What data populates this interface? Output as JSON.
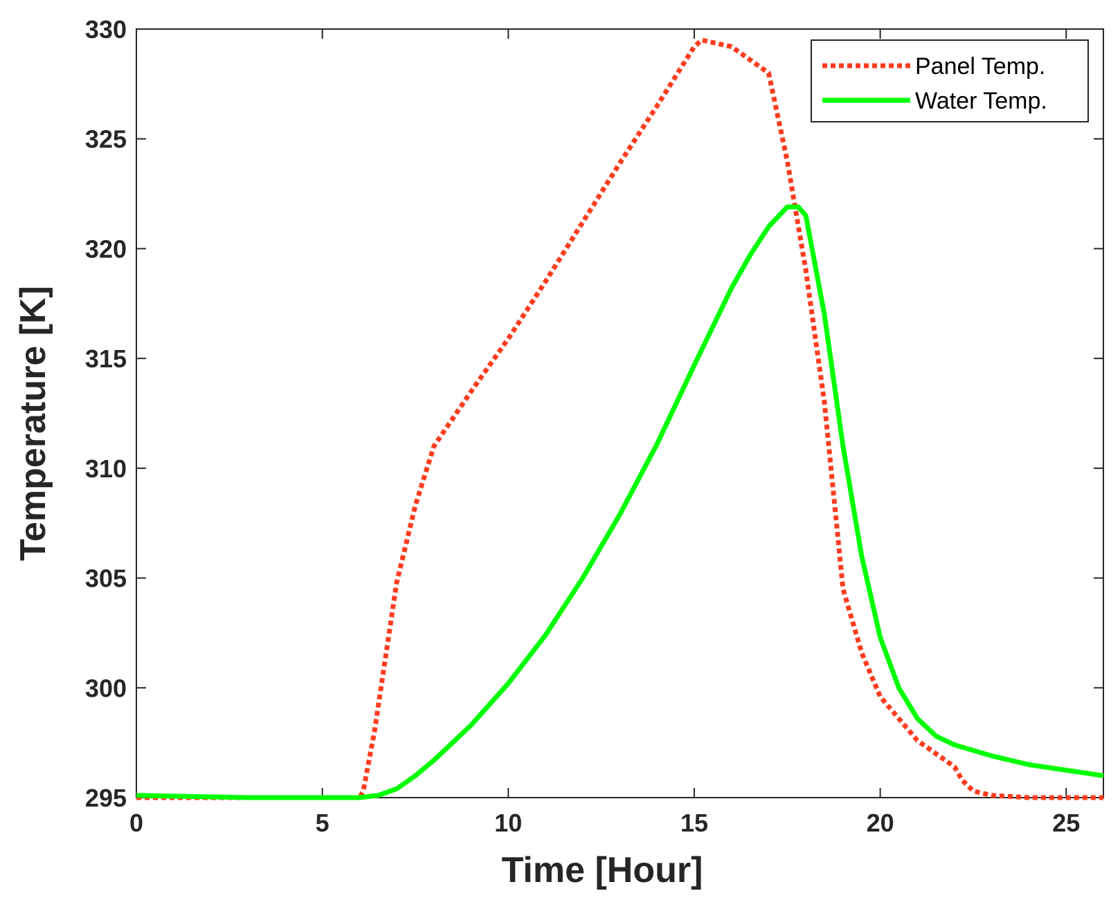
{
  "chart_data": {
    "type": "line",
    "xlabel": "Time [Hour]",
    "ylabel": "Temperature [K]",
    "xlim": [
      0,
      26
    ],
    "ylim": [
      295,
      330
    ],
    "xticks": [
      0,
      5,
      10,
      15,
      20,
      25
    ],
    "yticks": [
      295,
      300,
      305,
      310,
      315,
      320,
      325,
      330
    ],
    "grid": false,
    "legend_position": "top-right",
    "series": [
      {
        "name": "Panel Temp.",
        "color": "#ff3d1f",
        "style": "dotted",
        "x": [
          0,
          3,
          6.0,
          6.1,
          6.4,
          7.0,
          7.5,
          8.0,
          9.0,
          10.0,
          11.0,
          12.0,
          13.0,
          14.0,
          15.0,
          15.2,
          16.0,
          17.0,
          17.5,
          18.0,
          18.5,
          19.0,
          19.5,
          20.0,
          21.0,
          22.0,
          22.2,
          22.5,
          23.0,
          24.0,
          26.0
        ],
        "y": [
          295.0,
          295.0,
          295.0,
          295.3,
          298.0,
          304.8,
          308.3,
          311.0,
          313.5,
          315.9,
          318.5,
          321.2,
          323.9,
          326.5,
          329.2,
          329.5,
          329.2,
          328.0,
          324.0,
          319.0,
          313.0,
          304.5,
          301.6,
          299.6,
          297.6,
          296.4,
          295.8,
          295.3,
          295.1,
          295.0,
          295.0
        ]
      },
      {
        "name": "Water Temp.",
        "color": "#00ff00",
        "style": "solid",
        "x": [
          0,
          3,
          6.0,
          6.5,
          7.0,
          7.5,
          8.0,
          9.0,
          10.0,
          11.0,
          12.0,
          13.0,
          14.0,
          15.0,
          16.0,
          16.5,
          17.0,
          17.5,
          17.8,
          18.0,
          18.5,
          19.0,
          19.5,
          20.0,
          20.5,
          21.0,
          21.5,
          22.0,
          23.0,
          24.0,
          26.0
        ],
        "y": [
          295.1,
          295.0,
          295.0,
          295.1,
          295.4,
          296.0,
          296.7,
          298.3,
          300.2,
          302.4,
          305.0,
          307.9,
          311.1,
          314.7,
          318.2,
          319.7,
          321.0,
          321.9,
          321.9,
          321.5,
          317.0,
          311.0,
          306.0,
          302.3,
          300.0,
          298.6,
          297.8,
          297.4,
          296.9,
          296.5,
          296.0
        ]
      }
    ]
  }
}
